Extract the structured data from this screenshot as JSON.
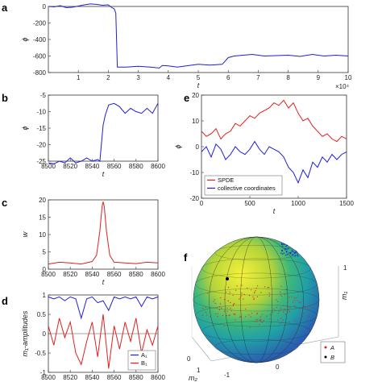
{
  "panel_letters": [
    "a",
    "b",
    "c",
    "d",
    "e",
    "f"
  ],
  "colors": {
    "blue": "#1f1fd6",
    "red": "#e02020",
    "black": "#000000"
  },
  "chart_data": [
    {
      "panel": "a",
      "type": "line",
      "xlabel": "t",
      "ylabel": "ϕ",
      "xlim": [
        0,
        100000
      ],
      "ylim": [
        -800,
        0
      ],
      "xticks": [
        10000,
        20000,
        30000,
        40000,
        50000,
        60000,
        70000,
        80000,
        90000,
        100000
      ],
      "xtick_labels": [
        "1",
        "2",
        "3",
        "4",
        "5",
        "6",
        "7",
        "8",
        "9",
        "10"
      ],
      "x_multiplier": "×10⁴",
      "yticks": [
        0,
        -200,
        -400,
        -600,
        -800
      ],
      "ytick_labels": [
        "0",
        "-200",
        "-400",
        "-600",
        "-800"
      ],
      "series": [
        {
          "color": "blue",
          "x": [
            0,
            2000,
            4000,
            6000,
            8000,
            10000,
            12000,
            14000,
            16000,
            18000,
            20000,
            21000,
            22000,
            22500,
            23000,
            26000,
            30000,
            34000,
            37000,
            38000,
            40000,
            43000,
            46000,
            50000,
            54000,
            58000,
            60000,
            62000,
            65000,
            68000,
            72000,
            76000,
            80000,
            84000,
            88000,
            92000,
            96000,
            100000
          ],
          "y": [
            0,
            -5,
            10,
            -15,
            -10,
            5,
            20,
            30,
            25,
            15,
            20,
            -10,
            -30,
            -80,
            -735,
            -735,
            -725,
            -735,
            -745,
            -715,
            -720,
            -735,
            -720,
            -700,
            -710,
            -700,
            -620,
            -600,
            -590,
            -580,
            -600,
            -595,
            -590,
            -605,
            -580,
            -600,
            -590,
            -600
          ]
        }
      ]
    },
    {
      "panel": "b",
      "type": "line",
      "xlabel": "t",
      "ylabel": "ϕ",
      "xlim": [
        8500,
        8600
      ],
      "ylim": [
        -25,
        -5
      ],
      "xticks": [
        8500,
        8520,
        8540,
        8560,
        8580,
        8600
      ],
      "xtick_labels": [
        "8500",
        "8520",
        "8540",
        "8560",
        "8580",
        "8600"
      ],
      "yticks": [
        -5,
        -10,
        -15,
        -20,
        -25
      ],
      "ytick_labels": [
        "-5",
        "-10",
        "-15",
        "-20",
        "-25"
      ],
      "series": [
        {
          "color": "blue",
          "x": [
            8500,
            8505,
            8510,
            8515,
            8520,
            8525,
            8530,
            8535,
            8540,
            8545,
            8547,
            8550,
            8552,
            8555,
            8560,
            8565,
            8570,
            8575,
            8580,
            8585,
            8590,
            8595,
            8600
          ],
          "y": [
            -25.5,
            -25.8,
            -25,
            -25.5,
            -24,
            -25.5,
            -25,
            -24,
            -25,
            -24.5,
            -25,
            -14,
            -11,
            -8,
            -7.5,
            -8.5,
            -10.5,
            -9,
            -10,
            -10.5,
            -9,
            -10.5,
            -7.5
          ]
        }
      ]
    },
    {
      "panel": "c",
      "type": "line",
      "xlabel": "t",
      "ylabel": "w",
      "xlim": [
        8500,
        8600
      ],
      "ylim": [
        0,
        20
      ],
      "xticks": [
        8500,
        8520,
        8540,
        8560,
        8580,
        8600
      ],
      "xtick_labels": [
        "8500",
        "8520",
        "8540",
        "8560",
        "8580",
        "8600"
      ],
      "yticks": [
        0,
        5,
        10,
        15,
        20
      ],
      "ytick_labels": [
        "0",
        "5",
        "10",
        "15",
        "20"
      ],
      "series": [
        {
          "color": "red",
          "x": [
            8500,
            8510,
            8520,
            8530,
            8540,
            8544,
            8547,
            8549,
            8550,
            8551,
            8553,
            8556,
            8560,
            8570,
            8580,
            8590,
            8600
          ],
          "y": [
            1.5,
            2,
            1.8,
            1.5,
            2.2,
            4,
            11,
            18,
            19.5,
            18,
            11,
            4,
            2,
            1.8,
            1.6,
            2,
            1.8
          ]
        }
      ]
    },
    {
      "panel": "d",
      "type": "line",
      "xlabel": "",
      "ylabel": "m₁-amplitudes",
      "xlim": [
        8500,
        8600
      ],
      "ylim": [
        -1,
        1
      ],
      "xticks": [
        8500,
        8520,
        8540,
        8560,
        8580,
        8600
      ],
      "xtick_labels": [
        "8500",
        "8520",
        "8540",
        "8560",
        "8580",
        "8600"
      ],
      "yticks": [
        1,
        0.5,
        0,
        -0.5,
        -1
      ],
      "ytick_labels": [
        "1",
        "0.5",
        "0",
        "-0.5",
        "-1"
      ],
      "legend": [
        "A₁",
        "B₁"
      ],
      "legend_placement": "bottom-right",
      "series": [
        {
          "name": "A₁",
          "color": "blue",
          "x": [
            8500,
            8505,
            8510,
            8515,
            8520,
            8525,
            8530,
            8535,
            8540,
            8545,
            8550,
            8555,
            8560,
            8565,
            8570,
            8575,
            8580,
            8585,
            8590,
            8595,
            8600
          ],
          "y": [
            0.95,
            0.9,
            0.95,
            0.85,
            0.95,
            0.9,
            0.4,
            0.9,
            0.95,
            0.8,
            0.85,
            0.6,
            0.95,
            0.9,
            0.95,
            0.9,
            0.95,
            0.7,
            0.95,
            0.9,
            0.95
          ]
        },
        {
          "name": "B₁",
          "color": "red",
          "x": [
            8500,
            8505,
            8510,
            8515,
            8520,
            8525,
            8530,
            8535,
            8540,
            8545,
            8550,
            8555,
            8560,
            8565,
            8570,
            8575,
            8580,
            8585,
            8590,
            8595,
            8600
          ],
          "y": [
            0.2,
            -0.3,
            0.4,
            -0.1,
            0.3,
            -0.5,
            -0.8,
            -0.2,
            0.3,
            -0.6,
            0.5,
            -0.9,
            0.2,
            -0.4,
            0.3,
            -0.2,
            0.4,
            -0.5,
            0.1,
            -0.3,
            0.2
          ]
        }
      ]
    },
    {
      "panel": "e",
      "type": "line",
      "xlabel": "t",
      "ylabel": "ϕ",
      "xlim": [
        0,
        1500
      ],
      "ylim": [
        -20,
        20
      ],
      "xticks": [
        0,
        500,
        1000,
        1500
      ],
      "xtick_labels": [
        "0",
        "500",
        "1000",
        "1500"
      ],
      "yticks": [
        20,
        10,
        0,
        -10,
        -20
      ],
      "ytick_labels": [
        "20",
        "10",
        "0",
        "-10",
        "-20"
      ],
      "legend": [
        "SPDE",
        "collective coordinates"
      ],
      "legend_placement": "bottom-left",
      "series": [
        {
          "name": "SPDE",
          "color": "red",
          "x": [
            0,
            50,
            100,
            150,
            200,
            250,
            300,
            350,
            400,
            450,
            500,
            550,
            600,
            650,
            700,
            750,
            800,
            850,
            900,
            950,
            1000,
            1050,
            1100,
            1150,
            1200,
            1250,
            1300,
            1350,
            1400,
            1450,
            1500
          ],
          "y": [
            6,
            4,
            5,
            7,
            3,
            5,
            6,
            9,
            8,
            10,
            12,
            11,
            13,
            14,
            15,
            17,
            16,
            18,
            15,
            17,
            13,
            10,
            11,
            8,
            6,
            4,
            5,
            3,
            2,
            4,
            3
          ]
        },
        {
          "name": "collective coordinates",
          "color": "blue",
          "x": [
            0,
            50,
            100,
            150,
            200,
            250,
            300,
            350,
            400,
            450,
            500,
            550,
            600,
            650,
            700,
            750,
            800,
            850,
            900,
            950,
            1000,
            1050,
            1100,
            1150,
            1200,
            1250,
            1300,
            1350,
            1400,
            1450,
            1500
          ],
          "y": [
            -2,
            0,
            -4,
            1,
            -1,
            -5,
            -3,
            0,
            -2,
            -3,
            -1,
            2,
            -1,
            -3,
            0,
            -1,
            -2,
            -4,
            -8,
            -10,
            -14,
            -9,
            -12,
            -6,
            -8,
            -4,
            -6,
            -3,
            -5,
            -3,
            -2
          ]
        }
      ]
    },
    {
      "panel": "f",
      "type": "scatter",
      "xlabel": "m₂",
      "ylabel": "m₁",
      "zlabel": "",
      "surface": "colored unit sphere",
      "legend": [
        "A",
        "B"
      ],
      "legend_placement": "bottom-right",
      "bottom_ticks_left": [
        "1",
        "0"
      ],
      "bottom_ticks_right": [
        "-1",
        "0",
        "1"
      ],
      "vertical_ticks": [
        "1"
      ],
      "series": [
        {
          "name": "A",
          "color": "red"
        },
        {
          "name": "B",
          "color": "black"
        }
      ]
    }
  ]
}
